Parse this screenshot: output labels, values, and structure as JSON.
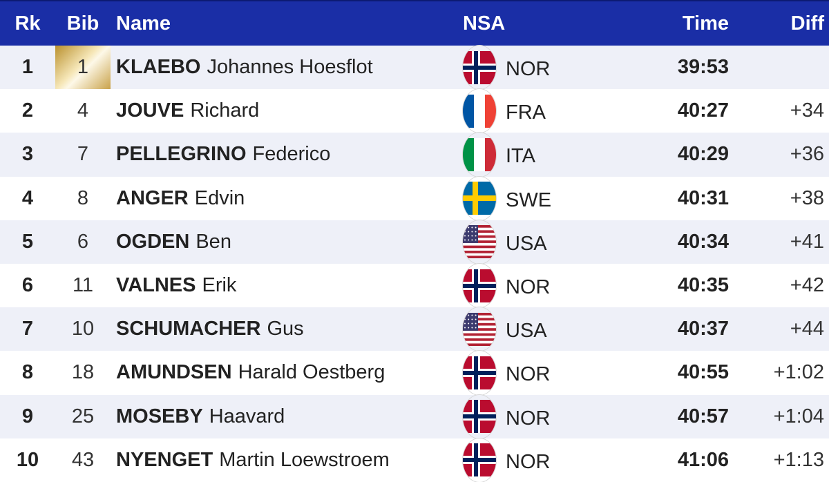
{
  "header": {
    "rk": "Rk",
    "bib": "Bib",
    "name": "Name",
    "nsa": "NSA",
    "time": "Time",
    "diff": "Diff"
  },
  "rows": [
    {
      "rk": "1",
      "bib": "1",
      "surname": "KLAEBO",
      "given": "Johannes Hoesflot",
      "nsa": "NOR",
      "flag": "norway-flag-icon",
      "time": "39:53",
      "diff": ""
    },
    {
      "rk": "2",
      "bib": "4",
      "surname": "JOUVE",
      "given": "Richard",
      "nsa": "FRA",
      "flag": "france-flag-icon",
      "time": "40:27",
      "diff": "+34"
    },
    {
      "rk": "3",
      "bib": "7",
      "surname": "PELLEGRINO",
      "given": "Federico",
      "nsa": "ITA",
      "flag": "italy-flag-icon",
      "time": "40:29",
      "diff": "+36"
    },
    {
      "rk": "4",
      "bib": "8",
      "surname": "ANGER",
      "given": "Edvin",
      "nsa": "SWE",
      "flag": "sweden-flag-icon",
      "time": "40:31",
      "diff": "+38"
    },
    {
      "rk": "5",
      "bib": "6",
      "surname": "OGDEN",
      "given": "Ben",
      "nsa": "USA",
      "flag": "usa-flag-icon",
      "time": "40:34",
      "diff": "+41"
    },
    {
      "rk": "6",
      "bib": "11",
      "surname": "VALNES",
      "given": "Erik",
      "nsa": "NOR",
      "flag": "norway-flag-icon",
      "time": "40:35",
      "diff": "+42"
    },
    {
      "rk": "7",
      "bib": "10",
      "surname": "SCHUMACHER",
      "given": "Gus",
      "nsa": "USA",
      "flag": "usa-flag-icon",
      "time": "40:37",
      "diff": "+44"
    },
    {
      "rk": "8",
      "bib": "18",
      "surname": "AMUNDSEN",
      "given": "Harald Oestberg",
      "nsa": "NOR",
      "flag": "norway-flag-icon",
      "time": "40:55",
      "diff": "+1:02"
    },
    {
      "rk": "9",
      "bib": "25",
      "surname": "MOSEBY",
      "given": "Haavard",
      "nsa": "NOR",
      "flag": "norway-flag-icon",
      "time": "40:57",
      "diff": "+1:04"
    },
    {
      "rk": "10",
      "bib": "43",
      "surname": "NYENGET",
      "given": "Martin Loewstroem",
      "nsa": "NOR",
      "flag": "norway-flag-icon",
      "time": "41:06",
      "diff": "+1:13"
    }
  ],
  "colors": {
    "header_bg": "#1a2ea6",
    "row_alt": "#eef0f8",
    "leader_bib": "#c9a24a"
  }
}
